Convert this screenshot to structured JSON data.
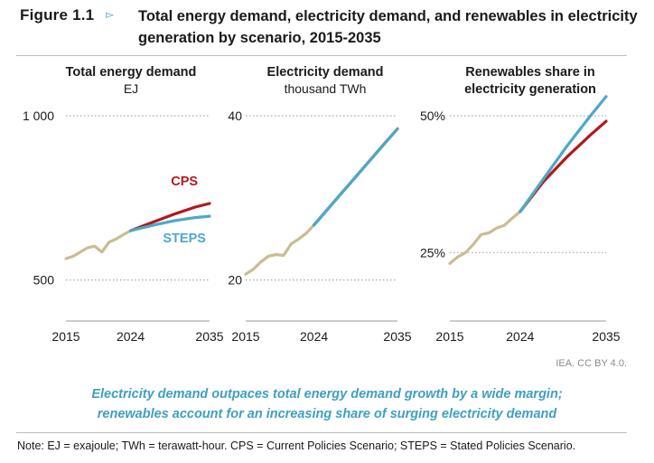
{
  "figure": {
    "label": "Figure 1.1",
    "arrow": "▻",
    "title": "Total energy demand, electricity demand, and renewables in electricity generation by scenario, 2015-2035"
  },
  "colors": {
    "historical": "#c9bc92",
    "cps": "#b4171c",
    "steps": "#4ba9c8",
    "grid": "#a8a8a8",
    "accent": "#3f9fc0"
  },
  "chart_data": [
    {
      "type": "line",
      "title": "Total energy demand",
      "unit": "EJ",
      "xlim": [
        2015,
        2035
      ],
      "ylim": [
        375,
        1000
      ],
      "yticks": [
        {
          "value": 1000,
          "label": "1 000"
        },
        {
          "value": 500,
          "label": "500"
        }
      ],
      "xticks": [
        {
          "value": 2015,
          "label": "2015"
        },
        {
          "value": 2024,
          "label": "2024"
        },
        {
          "value": 2035,
          "label": "2035"
        }
      ],
      "series": [
        {
          "name": "Historical",
          "color_key": "historical",
          "x": [
            2015,
            2016,
            2017,
            2018,
            2019,
            2020,
            2021,
            2022,
            2023,
            2024
          ],
          "y": [
            565,
            572,
            585,
            598,
            603,
            585,
            615,
            625,
            638,
            650
          ]
        },
        {
          "name": "CPS",
          "color_key": "cps",
          "label": "CPS",
          "label_pos": "above",
          "x": [
            2024,
            2027,
            2030,
            2033,
            2035
          ],
          "y": [
            650,
            675,
            700,
            722,
            733
          ]
        },
        {
          "name": "STEPS",
          "color_key": "steps",
          "label": "STEPS",
          "label_pos": "below",
          "x": [
            2024,
            2027,
            2030,
            2033,
            2035
          ],
          "y": [
            650,
            666,
            680,
            690,
            694
          ]
        }
      ]
    },
    {
      "type": "line",
      "title": "Electricity demand",
      "unit": "thousand TWh",
      "xlim": [
        2015,
        2035
      ],
      "ylim": [
        15,
        40
      ],
      "yticks": [
        {
          "value": 40,
          "label": "40"
        },
        {
          "value": 20,
          "label": "20"
        }
      ],
      "xticks": [
        {
          "value": 2015,
          "label": "2015"
        },
        {
          "value": 2024,
          "label": "2024"
        },
        {
          "value": 2035,
          "label": "2035"
        }
      ],
      "series": [
        {
          "name": "Historical",
          "color_key": "historical",
          "x": [
            2015,
            2016,
            2017,
            2018,
            2019,
            2020,
            2021,
            2022,
            2023,
            2024
          ],
          "y": [
            20.7,
            21.3,
            22.2,
            22.9,
            23.1,
            23.0,
            24.4,
            25.0,
            25.7,
            26.7
          ]
        },
        {
          "name": "CPS",
          "color_key": "cps",
          "x": [
            2024,
            2027,
            2030,
            2033,
            2035
          ],
          "y": [
            26.7,
            29.9,
            33.1,
            36.3,
            38.4
          ]
        },
        {
          "name": "STEPS",
          "color_key": "steps",
          "x": [
            2024,
            2027,
            2030,
            2033,
            2035
          ],
          "y": [
            26.7,
            29.9,
            33.1,
            36.3,
            38.4
          ]
        }
      ]
    },
    {
      "type": "line",
      "title": "Renewables share in electricity generation",
      "title_lines": [
        "Renewables share in",
        "electricity generation"
      ],
      "unit": "",
      "xlim": [
        2015,
        2035
      ],
      "ylim": [
        12.5,
        50
      ],
      "yticks": [
        {
          "value": 50,
          "label": "50%"
        },
        {
          "value": 25,
          "label": "25%"
        }
      ],
      "xticks": [
        {
          "value": 2015,
          "label": "2015"
        },
        {
          "value": 2024,
          "label": "2024"
        },
        {
          "value": 2035,
          "label": "2035"
        }
      ],
      "series": [
        {
          "name": "Historical",
          "color_key": "historical",
          "x": [
            2015,
            2016,
            2017,
            2018,
            2019,
            2020,
            2021,
            2022,
            2023,
            2024
          ],
          "y": [
            23.0,
            24.2,
            25.0,
            26.5,
            28.3,
            28.6,
            29.5,
            30.0,
            31.3,
            32.5
          ]
        },
        {
          "name": "CPS",
          "color_key": "cps",
          "x": [
            2024,
            2027,
            2030,
            2033,
            2035
          ],
          "y": [
            32.5,
            38.0,
            42.5,
            46.5,
            49.0
          ]
        },
        {
          "name": "STEPS",
          "color_key": "steps",
          "x": [
            2024,
            2027,
            2030,
            2033,
            2035
          ],
          "y": [
            32.5,
            38.5,
            44.5,
            50.0,
            53.5
          ]
        }
      ]
    }
  ],
  "credit": "IEA. CC BY 4.0.",
  "takeaway": {
    "line1": "Electricity demand outpaces total energy demand growth by a wide margin;",
    "line2": "renewables account for an increasing share of surging electricity demand"
  },
  "note": "Note: EJ = exajoule; TWh = terawatt-hour. CPS = Current Policies Scenario; STEPS = Stated Policies Scenario."
}
